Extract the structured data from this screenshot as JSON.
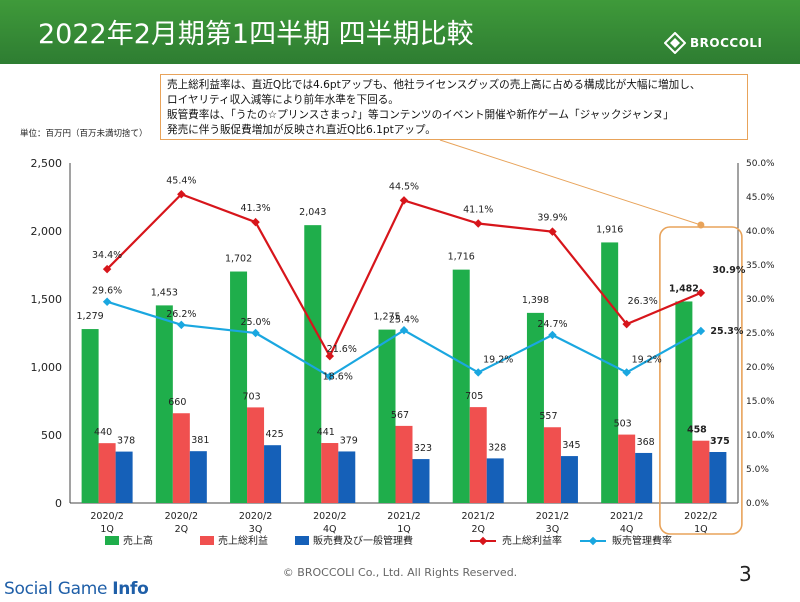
{
  "header": {
    "title": "2022年2月期第1四半期 四半期比較",
    "logo_text": "BROCCOLI",
    "background_color": "#2e7d32"
  },
  "note": {
    "lines": [
      "売上総利益率は、直近Q比では4.6ptアップも、他社ライセンスグッズの売上高に占める構成比が大幅に増加し、",
      "ロイヤリティ収入減等により前年水準を下回る。",
      "販管費率は、「うたの☆プリンスさまっ♪」等コンテンツのイベント開催や新作ゲーム「ジャックジャンヌ」",
      "発売に伴う販促費増加が反映され直近Q比6.1ptアップ。"
    ]
  },
  "unit_label": "単位：百万円（百万未満切捨て）",
  "footer": {
    "copyright": "© BROCCOLI Co., Ltd. All Rights Reserved.",
    "page_number": "3",
    "brand_regular": "Social Game ",
    "brand_bold": "Info"
  },
  "chart_data": {
    "type": "bar",
    "categories": [
      [
        "2020/2",
        "1Q"
      ],
      [
        "2020/2",
        "2Q"
      ],
      [
        "2020/2",
        "3Q"
      ],
      [
        "2020/2",
        "4Q"
      ],
      [
        "2021/2",
        "1Q"
      ],
      [
        "2021/2",
        "2Q"
      ],
      [
        "2021/2",
        "3Q"
      ],
      [
        "2021/2",
        "4Q"
      ],
      [
        "2022/2",
        "1Q"
      ]
    ],
    "left_axis": {
      "min": 0,
      "max": 2500,
      "step": 500,
      "tick_labels": [
        "0",
        "500",
        "1,000",
        "1,500",
        "2,000",
        "2,500"
      ]
    },
    "right_axis": {
      "min": 0,
      "max": 50,
      "step": 5,
      "tick_labels": [
        "0.0%",
        "5.0%",
        "10.0%",
        "15.0%",
        "20.0%",
        "25.0%",
        "30.0%",
        "35.0%",
        "40.0%",
        "45.0%",
        "50.0%"
      ]
    },
    "bar_series": [
      {
        "name": "売上高",
        "color": "#1fae4b",
        "values": [
          1279,
          1453,
          1702,
          2043,
          1275,
          1716,
          1398,
          1916,
          1482
        ],
        "labels": [
          "1,279",
          "1,453",
          "1,702",
          "2,043",
          "1,275",
          "1,716",
          "1,398",
          "1,916",
          "1,482"
        ]
      },
      {
        "name": "売上総利益",
        "color": "#f0504f",
        "values": [
          440,
          660,
          703,
          441,
          567,
          705,
          557,
          503,
          458
        ],
        "labels": [
          "440",
          "660",
          "703",
          "441",
          "567",
          "705",
          "557",
          "503",
          "458"
        ]
      },
      {
        "name": "販売費及び一般管理費",
        "color": "#1560b8",
        "values": [
          378,
          381,
          425,
          379,
          323,
          328,
          345,
          368,
          375
        ],
        "labels": [
          "378",
          "381",
          "425",
          "379",
          "323",
          "328",
          "345",
          "368",
          "375"
        ]
      }
    ],
    "line_series": [
      {
        "name": "売上総利益率",
        "color": "#d7151b",
        "values": [
          34.4,
          45.4,
          41.3,
          21.6,
          44.5,
          41.1,
          39.9,
          26.3,
          30.9
        ],
        "labels": [
          "34.4%",
          "45.4%",
          "41.3%",
          "21.6%",
          "44.5%",
          "41.1%",
          "39.9%",
          "26.3%",
          "30.9%"
        ]
      },
      {
        "name": "販売管理費率",
        "color": "#1aa7e0",
        "values": [
          29.6,
          26.2,
          25.0,
          18.6,
          25.4,
          19.2,
          24.7,
          19.2,
          25.3
        ],
        "labels": [
          "29.6%",
          "26.2%",
          "25.0%",
          "18.6%",
          "25.4%",
          "19.2%",
          "24.7%",
          "19.2%",
          "25.3%"
        ]
      }
    ],
    "highlight_category_index": 8,
    "highlight_color": "#e8a35a",
    "legend_position": "bottom",
    "grid": false
  }
}
